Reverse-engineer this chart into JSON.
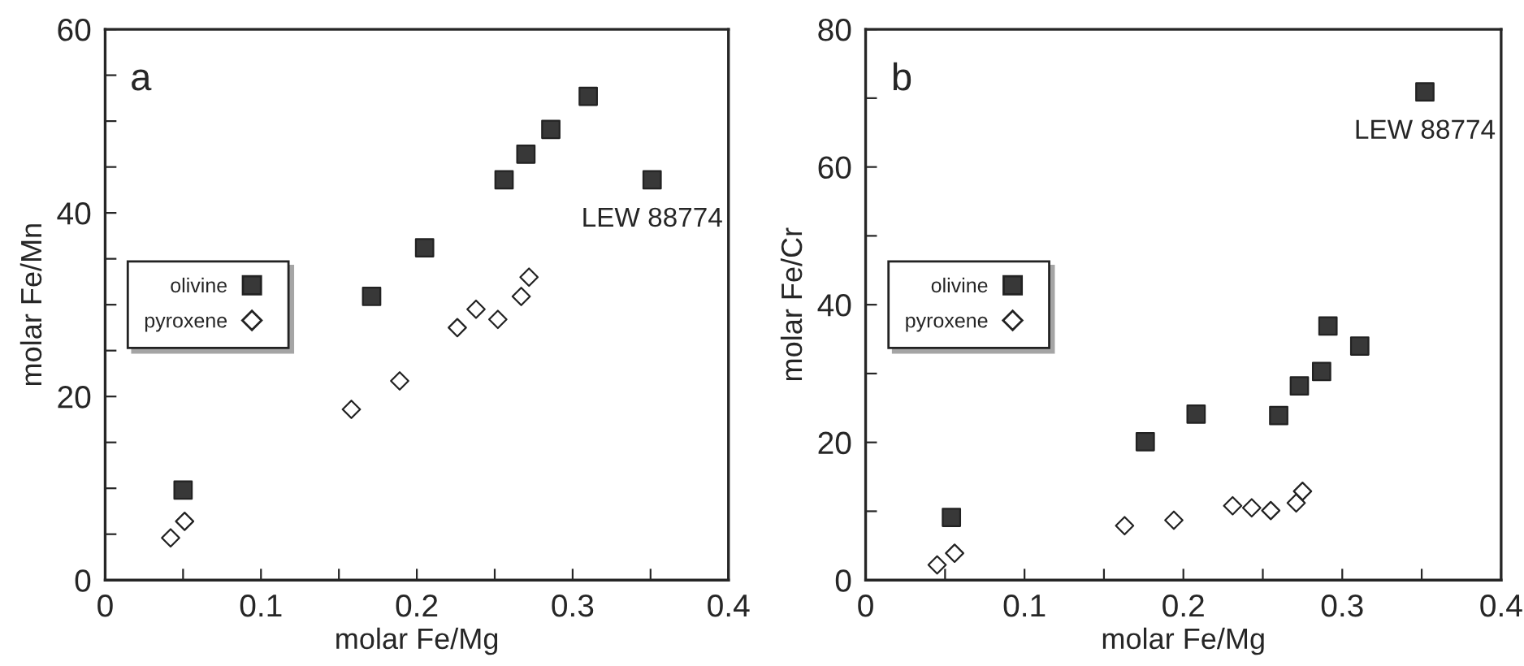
{
  "chart_data": [
    {
      "type": "scatter",
      "title": "a",
      "xlabel": "molar Fe/Mg",
      "ylabel": "molar Fe/Mn",
      "xlim": [
        0,
        0.4
      ],
      "ylim": [
        0,
        60
      ],
      "xticks": [
        0,
        {
          "value": 0.05,
          "label": null
        },
        0.1,
        {
          "value": 0.15,
          "label": null
        },
        0.2,
        {
          "value": 0.25,
          "label": null
        },
        0.3,
        {
          "value": 0.35,
          "label": null
        },
        0.4
      ],
      "yticks": [
        0,
        {
          "value": 5,
          "label": null
        },
        {
          "value": 10,
          "label": null
        },
        {
          "value": 15,
          "label": null
        },
        20,
        {
          "value": 25,
          "label": null
        },
        {
          "value": 30,
          "label": null
        },
        {
          "value": 35,
          "label": null
        },
        40,
        {
          "value": 45,
          "label": null
        },
        {
          "value": 50,
          "label": null
        },
        {
          "value": 55,
          "label": null
        },
        60
      ],
      "legend": "center left",
      "grid": false,
      "annotations": [
        {
          "text": "LEW 88774",
          "x": 0.351,
          "y": 43.6
        }
      ],
      "series": [
        {
          "name": "olivine",
          "color": "#383838",
          "marker": "square",
          "x": [
            0.05,
            0.171,
            0.205,
            0.256,
            0.27,
            0.286,
            0.31,
            0.351
          ],
          "values": [
            9.8,
            30.9,
            36.2,
            43.6,
            46.4,
            49.1,
            52.7,
            43.6
          ]
        },
        {
          "name": "pyroxene",
          "color": "#ffffff",
          "marker": "diamond",
          "x": [
            0.042,
            0.051,
            0.158,
            0.189,
            0.226,
            0.238,
            0.252,
            0.267,
            0.272
          ],
          "values": [
            4.6,
            6.4,
            18.6,
            21.7,
            27.5,
            29.5,
            28.4,
            30.9,
            33.0
          ]
        }
      ]
    },
    {
      "type": "scatter",
      "title": "b",
      "xlabel": "molar Fe/Mg",
      "ylabel": "molar Fe/Cr",
      "xlim": [
        0,
        0.4
      ],
      "ylim": [
        0,
        80
      ],
      "xticks": [
        0,
        {
          "value": 0.05,
          "label": null
        },
        0.1,
        {
          "value": 0.15,
          "label": null
        },
        0.2,
        {
          "value": 0.25,
          "label": null
        },
        0.3,
        {
          "value": 0.35,
          "label": null
        },
        0.4
      ],
      "yticks": [
        0,
        {
          "value": 10,
          "label": null
        },
        20,
        {
          "value": 30,
          "label": null
        },
        40,
        {
          "value": 50,
          "label": null
        },
        60,
        {
          "value": 70,
          "label": null
        },
        80
      ],
      "legend": "center left",
      "grid": false,
      "annotations": [
        {
          "text": "LEW 88774",
          "x": 0.352,
          "y": 70.9
        }
      ],
      "series": [
        {
          "name": "olivine",
          "color": "#383838",
          "marker": "square",
          "x": [
            0.054,
            0.176,
            0.208,
            0.26,
            0.273,
            0.287,
            0.291,
            0.311,
            0.352
          ],
          "values": [
            9.1,
            20.1,
            24.1,
            23.9,
            28.2,
            30.3,
            36.9,
            34.0,
            70.9
          ]
        },
        {
          "name": "pyroxene",
          "color": "#ffffff",
          "marker": "diamond",
          "x": [
            0.045,
            0.056,
            0.163,
            0.194,
            0.231,
            0.243,
            0.255,
            0.271,
            0.275
          ],
          "values": [
            2.2,
            3.9,
            7.9,
            8.7,
            10.8,
            10.5,
            10.1,
            11.2,
            12.9
          ]
        }
      ]
    }
  ]
}
